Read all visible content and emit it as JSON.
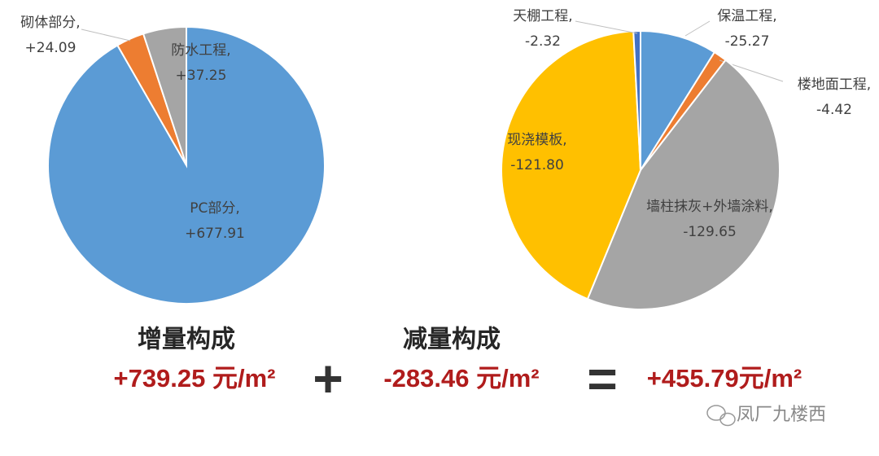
{
  "chart_data": [
    {
      "type": "pie",
      "categories": [
        "PC部分,",
        "砌体部分,",
        "防水工程,"
      ],
      "values": [
        677.91,
        24.09,
        37.25
      ],
      "value_labels": [
        "+677.91",
        "+24.09",
        "+37.25"
      ],
      "colors": [
        "#5b9bd5",
        "#ed7d31",
        "#a5a5a5"
      ]
    },
    {
      "type": "pie",
      "categories": [
        "保温工程,",
        "楼地面工程,",
        "墙柱抹灰+外墙涂料,",
        "现浇模板,",
        "天棚工程,"
      ],
      "values": [
        -25.27,
        -4.42,
        -129.65,
        -121.8,
        -2.32
      ],
      "value_labels": [
        "-25.27",
        "-4.42",
        "-129.65",
        "-121.80",
        "-2.32"
      ],
      "colors": [
        "#5b9bd5",
        "#ed7d31",
        "#a5a5a5",
        "#ffc000",
        "#4472c4"
      ]
    }
  ],
  "summary": {
    "increase_title": "增量构成",
    "increase_value": "+739.25 元/m²",
    "plus": "+",
    "decrease_title": "减量构成",
    "decrease_value": "-283.46 元/m²",
    "equals": "=",
    "result_value": "+455.79元/m²",
    "watermark": "凤厂九楼西"
  }
}
